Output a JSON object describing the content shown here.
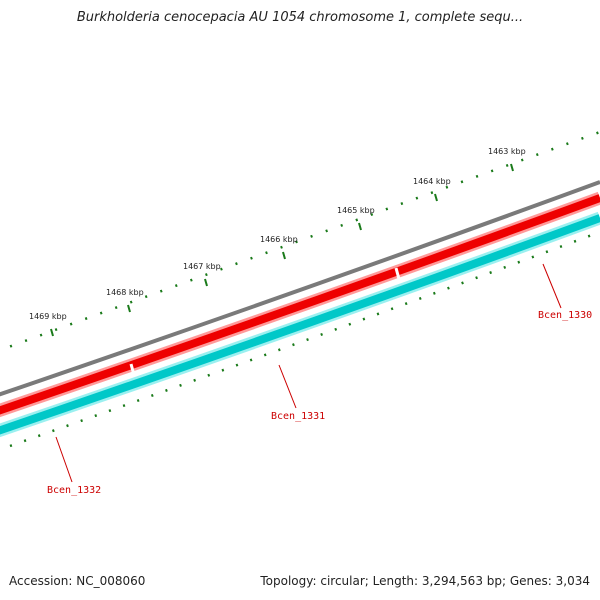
{
  "title": "Burkholderia cenocepacia AU 1054 chromosome 1, complete sequ...",
  "footer": {
    "accession_label": "Accession: NC_008060",
    "summary": "Topology: circular; Length: 3,294,563 bp; Genes: 3,034"
  },
  "scale_labels": [
    "1463 kbp",
    "1464 kbp",
    "1465 kbp",
    "1466 kbp",
    "1467 kbp",
    "1468 kbp",
    "1469 kbp"
  ],
  "genes": [
    {
      "name": "Bcen_1330",
      "strand": "forward"
    },
    {
      "name": "Bcen_1331",
      "strand": "forward"
    },
    {
      "name": "Bcen_1332",
      "strand": "reverse"
    }
  ],
  "colors": {
    "backbone": "#7a7a7a",
    "forward_cds": "#ee0000",
    "reverse_cds": "#00c8c8",
    "ticks": "#1a7a1a",
    "gene_label": "#cc0000"
  }
}
